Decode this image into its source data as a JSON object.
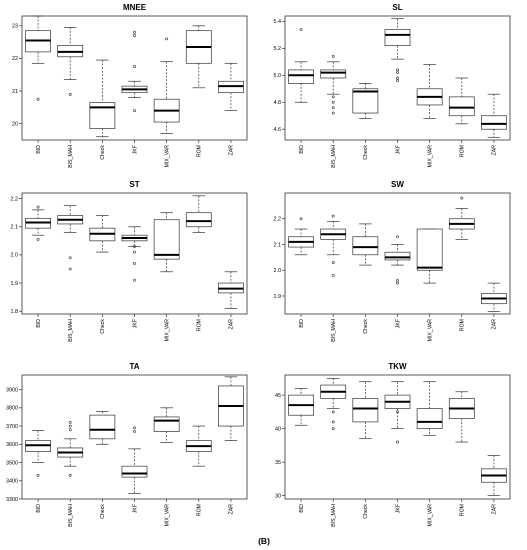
{
  "figure_label": "(B)",
  "chart_data": [
    {
      "type": "boxplot",
      "title": "MNEE",
      "categories": [
        "BID",
        "BIS_MAH",
        "Check",
        "JKF",
        "MIX_VAR",
        "ROM",
        "ZAR"
      ],
      "ylim": [
        19.5,
        23.3
      ],
      "yticks": [
        20,
        21,
        22,
        23
      ],
      "boxes": [
        {
          "min": 21.85,
          "q1": 22.2,
          "median": 22.55,
          "q3": 22.85,
          "max": 23.3,
          "outliers": [
            20.75
          ]
        },
        {
          "min": 21.35,
          "q1": 22.05,
          "median": 22.2,
          "q3": 22.4,
          "max": 22.95,
          "outliers": [
            20.9
          ]
        },
        {
          "min": 19.6,
          "q1": 19.85,
          "median": 20.5,
          "q3": 20.65,
          "max": 21.95,
          "outliers": []
        },
        {
          "min": 20.8,
          "q1": 20.95,
          "median": 21.05,
          "q3": 21.15,
          "max": 21.3,
          "outliers": [
            22.8,
            22.7,
            21.75,
            20.4
          ]
        },
        {
          "min": 19.7,
          "q1": 20.05,
          "median": 20.4,
          "q3": 20.75,
          "max": 21.9,
          "outliers": [
            22.6
          ]
        },
        {
          "min": 21.1,
          "q1": 21.85,
          "median": 22.35,
          "q3": 22.85,
          "max": 23.0,
          "outliers": []
        },
        {
          "min": 20.4,
          "q1": 20.95,
          "median": 21.15,
          "q3": 21.3,
          "max": 21.85,
          "outliers": []
        }
      ]
    },
    {
      "type": "boxplot",
      "title": "SL",
      "categories": [
        "BID",
        "BIS_MAH",
        "Check",
        "JKF",
        "MIX_VAR",
        "ROM",
        "ZAR"
      ],
      "ylim": [
        4.52,
        5.44
      ],
      "yticks": [
        4.6,
        4.8,
        5.0,
        5.2,
        5.4
      ],
      "boxes": [
        {
          "min": 4.8,
          "q1": 4.94,
          "median": 5.0,
          "q3": 5.04,
          "max": 5.1,
          "outliers": [
            5.34
          ]
        },
        {
          "min": 4.86,
          "q1": 4.98,
          "median": 5.02,
          "q3": 5.04,
          "max": 5.1,
          "outliers": [
            5.14,
            4.84,
            4.8,
            4.76,
            4.72
          ]
        },
        {
          "min": 4.68,
          "q1": 4.72,
          "median": 4.88,
          "q3": 4.9,
          "max": 4.94,
          "outliers": []
        },
        {
          "min": 5.12,
          "q1": 5.22,
          "median": 5.3,
          "q3": 5.34,
          "max": 5.42,
          "outliers": [
            5.04,
            5.02,
            4.98,
            4.96
          ]
        },
        {
          "min": 4.68,
          "q1": 4.78,
          "median": 4.84,
          "q3": 4.9,
          "max": 5.08,
          "outliers": []
        },
        {
          "min": 4.64,
          "q1": 4.7,
          "median": 4.76,
          "q3": 4.84,
          "max": 4.98,
          "outliers": []
        },
        {
          "min": 4.54,
          "q1": 4.6,
          "median": 4.64,
          "q3": 4.7,
          "max": 4.86,
          "outliers": []
        }
      ]
    },
    {
      "type": "boxplot",
      "title": "ST",
      "categories": [
        "BID",
        "BIS_MAH",
        "Check",
        "JKF",
        "MIX_VAR",
        "ROM",
        "ZAR"
      ],
      "ylim": [
        1.79,
        2.22
      ],
      "yticks": [
        1.8,
        1.9,
        2.0,
        2.1,
        2.2
      ],
      "boxes": [
        {
          "min": 2.07,
          "q1": 2.095,
          "median": 2.115,
          "q3": 2.13,
          "max": 2.16,
          "outliers": [
            2.17,
            2.055
          ]
        },
        {
          "min": 2.08,
          "q1": 2.11,
          "median": 2.125,
          "q3": 2.14,
          "max": 2.175,
          "outliers": [
            1.99,
            1.95
          ]
        },
        {
          "min": 2.01,
          "q1": 2.05,
          "median": 2.075,
          "q3": 2.095,
          "max": 2.14,
          "outliers": []
        },
        {
          "min": 2.03,
          "q1": 2.05,
          "median": 2.06,
          "q3": 2.07,
          "max": 2.1,
          "outliers": [
            2.03,
            2.01,
            1.97,
            1.91
          ]
        },
        {
          "min": 1.94,
          "q1": 1.985,
          "median": 2.0,
          "q3": 2.125,
          "max": 2.15,
          "outliers": []
        },
        {
          "min": 2.08,
          "q1": 2.1,
          "median": 2.12,
          "q3": 2.15,
          "max": 2.21,
          "outliers": []
        },
        {
          "min": 1.81,
          "q1": 1.865,
          "median": 1.88,
          "q3": 1.9,
          "max": 1.94,
          "outliers": []
        }
      ]
    },
    {
      "type": "boxplot",
      "title": "SW",
      "categories": [
        "BID",
        "BIS_MAH",
        "Check",
        "JKF",
        "MIX_VAR",
        "ROM",
        "ZAR"
      ],
      "ylim": [
        1.83,
        2.3
      ],
      "yticks": [
        1.9,
        2.0,
        2.1,
        2.2
      ],
      "boxes": [
        {
          "min": 2.06,
          "q1": 2.09,
          "median": 2.11,
          "q3": 2.13,
          "max": 2.16,
          "outliers": [
            2.2
          ]
        },
        {
          "min": 2.06,
          "q1": 2.12,
          "median": 2.14,
          "q3": 2.16,
          "max": 2.19,
          "outliers": [
            2.21,
            2.03,
            1.98
          ]
        },
        {
          "min": 2.02,
          "q1": 2.06,
          "median": 2.09,
          "q3": 2.13,
          "max": 2.18,
          "outliers": []
        },
        {
          "min": 2.02,
          "q1": 2.04,
          "median": 2.05,
          "q3": 2.07,
          "max": 2.1,
          "outliers": [
            2.13,
            1.96,
            1.95
          ]
        },
        {
          "min": 1.95,
          "q1": 2.0,
          "median": 2.01,
          "q3": 2.16,
          "max": 2.16,
          "outliers": []
        },
        {
          "min": 2.12,
          "q1": 2.16,
          "median": 2.18,
          "q3": 2.2,
          "max": 2.24,
          "outliers": [
            2.28
          ]
        },
        {
          "min": 1.84,
          "q1": 1.87,
          "median": 1.89,
          "q3": 1.91,
          "max": 1.95,
          "outliers": []
        }
      ]
    },
    {
      "type": "boxplot",
      "title": "TA",
      "categories": [
        "BID",
        "BIS_MAH",
        "Check",
        "JKF",
        "MIX_VAR",
        "ROM",
        "ZAR"
      ],
      "ylim": [
        3300,
        3980
      ],
      "yticks": [
        3300,
        3400,
        3500,
        3600,
        3700,
        3800,
        3900
      ],
      "boxes": [
        {
          "min": 3500,
          "q1": 3560,
          "median": 3595,
          "q3": 3620,
          "max": 3675,
          "outliers": [
            3430
          ]
        },
        {
          "min": 3480,
          "q1": 3530,
          "median": 3555,
          "q3": 3580,
          "max": 3630,
          "outliers": [
            3720,
            3700,
            3680,
            3430
          ]
        },
        {
          "min": 3600,
          "q1": 3630,
          "median": 3680,
          "q3": 3760,
          "max": 3780,
          "outliers": []
        },
        {
          "min": 3330,
          "q1": 3420,
          "median": 3440,
          "q3": 3480,
          "max": 3575,
          "outliers": [
            3690,
            3670
          ]
        },
        {
          "min": 3610,
          "q1": 3670,
          "median": 3730,
          "q3": 3750,
          "max": 3800,
          "outliers": []
        },
        {
          "min": 3480,
          "q1": 3560,
          "median": 3590,
          "q3": 3620,
          "max": 3700,
          "outliers": []
        },
        {
          "min": 3620,
          "q1": 3700,
          "median": 3810,
          "q3": 3920,
          "max": 3970,
          "outliers": []
        }
      ]
    },
    {
      "type": "boxplot",
      "title": "TKW",
      "categories": [
        "BID",
        "BIS_MAH",
        "Check",
        "JKF",
        "MIX_VAR",
        "ROM",
        "ZAR"
      ],
      "ylim": [
        29.5,
        48
      ],
      "yticks": [
        30,
        35,
        40,
        45
      ],
      "boxes": [
        {
          "min": 40.5,
          "q1": 42.0,
          "median": 43.5,
          "q3": 45.0,
          "max": 46.0,
          "outliers": []
        },
        {
          "min": 43.0,
          "q1": 44.5,
          "median": 45.5,
          "q3": 46.5,
          "max": 47.5,
          "outliers": [
            42.5,
            41.0,
            40.0
          ]
        },
        {
          "min": 38.5,
          "q1": 41.0,
          "median": 43.0,
          "q3": 44.5,
          "max": 47.0,
          "outliers": []
        },
        {
          "min": 40.0,
          "q1": 43.0,
          "median": 44.0,
          "q3": 45.0,
          "max": 47.0,
          "outliers": [
            42.5,
            38.0
          ]
        },
        {
          "min": 39.0,
          "q1": 40.0,
          "median": 41.0,
          "q3": 43.0,
          "max": 47.0,
          "outliers": []
        },
        {
          "min": 38.0,
          "q1": 41.5,
          "median": 43.0,
          "q3": 44.5,
          "max": 45.5,
          "outliers": []
        },
        {
          "min": 30.0,
          "q1": 32.0,
          "median": 33.0,
          "q3": 34.0,
          "max": 36.0,
          "outliers": []
        }
      ]
    }
  ]
}
